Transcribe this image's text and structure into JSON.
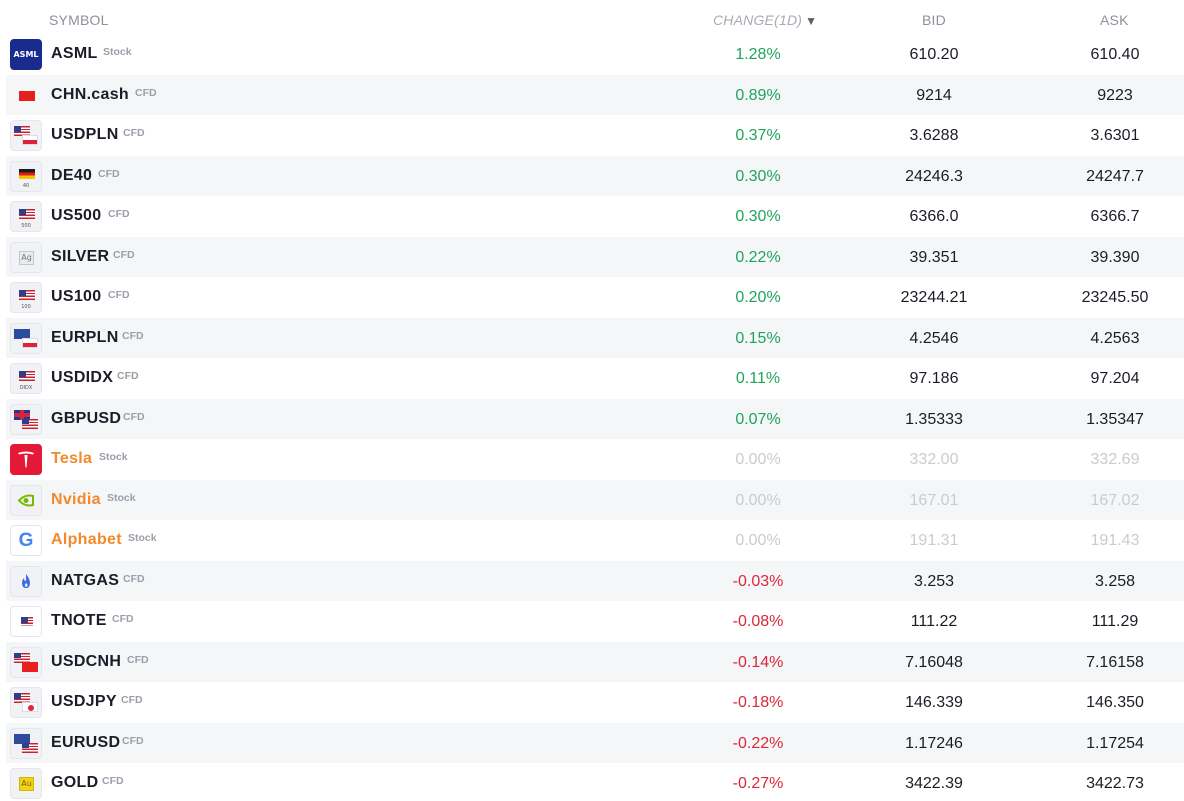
{
  "header": {
    "symbol": "SYMBOL",
    "change": "CHANGE(1D)",
    "sort_arrow": "▼",
    "bid": "BID",
    "ask": "ASK"
  },
  "colors": {
    "up": "#1fa45c",
    "down": "#d9283a",
    "flat": "#c8cbd1",
    "stock_name": "#f2892a"
  },
  "rows": [
    {
      "symbol": "ASML",
      "type": "Stock",
      "change": "1.28%",
      "bid": "610.20",
      "ask": "610.40",
      "icon": "asml-logo-icon",
      "logo_text": "ASML",
      "direction": "up"
    },
    {
      "symbol": "CHN.cash",
      "type": "CFD",
      "change": "0.89%",
      "bid": "9214",
      "ask": "9223",
      "icon": "china-flag-icon",
      "direction": "up"
    },
    {
      "symbol": "USDPLN",
      "type": "CFD",
      "change": "0.37%",
      "bid": "3.6288",
      "ask": "3.6301",
      "icon": "usd-pln-flags-icon",
      "direction": "up"
    },
    {
      "symbol": "DE40",
      "type": "CFD",
      "change": "0.30%",
      "bid": "24246.3",
      "ask": "24247.7",
      "icon": "germany-flag-icon",
      "logo_sub": "40",
      "direction": "up"
    },
    {
      "symbol": "US500",
      "type": "CFD",
      "change": "0.30%",
      "bid": "6366.0",
      "ask": "6366.7",
      "icon": "us-flag-icon",
      "logo_sub": "500",
      "direction": "up"
    },
    {
      "symbol": "SILVER",
      "type": "CFD",
      "change": "0.22%",
      "bid": "39.351",
      "ask": "39.390",
      "icon": "silver-ag-icon",
      "logo_text": "Ag",
      "direction": "up"
    },
    {
      "symbol": "US100",
      "type": "CFD",
      "change": "0.20%",
      "bid": "23244.21",
      "ask": "23245.50",
      "icon": "us-flag-icon",
      "logo_sub": "100",
      "direction": "up"
    },
    {
      "symbol": "EURPLN",
      "type": "CFD",
      "change": "0.15%",
      "bid": "4.2546",
      "ask": "4.2563",
      "icon": "eur-pln-flags-icon",
      "direction": "up"
    },
    {
      "symbol": "USDIDX",
      "type": "CFD",
      "change": "0.11%",
      "bid": "97.186",
      "ask": "97.204",
      "icon": "us-flag-icon",
      "logo_sub": "DIDX",
      "direction": "up"
    },
    {
      "symbol": "GBPUSD",
      "type": "CFD",
      "change": "0.07%",
      "bid": "1.35333",
      "ask": "1.35347",
      "icon": "gbp-usd-flags-icon",
      "direction": "up"
    },
    {
      "symbol": "Tesla",
      "type": "Stock",
      "change": "0.00%",
      "bid": "332.00",
      "ask": "332.69",
      "icon": "tesla-logo-icon",
      "direction": "flat"
    },
    {
      "symbol": "Nvidia",
      "type": "Stock",
      "change": "0.00%",
      "bid": "167.01",
      "ask": "167.02",
      "icon": "nvidia-logo-icon",
      "direction": "flat"
    },
    {
      "symbol": "Alphabet",
      "type": "Stock",
      "change": "0.00%",
      "bid": "191.31",
      "ask": "191.43",
      "icon": "google-logo-icon",
      "logo_text": "G",
      "direction": "flat"
    },
    {
      "symbol": "NATGAS",
      "type": "CFD",
      "change": "-0.03%",
      "bid": "3.253",
      "ask": "3.258",
      "icon": "gas-flame-icon",
      "direction": "down"
    },
    {
      "symbol": "TNOTE",
      "type": "CFD",
      "change": "-0.08%",
      "bid": "111.22",
      "ask": "111.29",
      "icon": "us-note-icon",
      "direction": "down"
    },
    {
      "symbol": "USDCNH",
      "type": "CFD",
      "change": "-0.14%",
      "bid": "7.16048",
      "ask": "7.16158",
      "icon": "usd-cnh-flags-icon",
      "direction": "down"
    },
    {
      "symbol": "USDJPY",
      "type": "CFD",
      "change": "-0.18%",
      "bid": "146.339",
      "ask": "146.350",
      "icon": "usd-jpy-flags-icon",
      "direction": "down"
    },
    {
      "symbol": "EURUSD",
      "type": "CFD",
      "change": "-0.22%",
      "bid": "1.17246",
      "ask": "1.17254",
      "icon": "eur-usd-flags-icon",
      "direction": "down"
    },
    {
      "symbol": "GOLD",
      "type": "CFD",
      "change": "-0.27%",
      "bid": "3422.39",
      "ask": "3422.73",
      "icon": "gold-au-icon",
      "logo_text": "Au",
      "direction": "down"
    }
  ]
}
